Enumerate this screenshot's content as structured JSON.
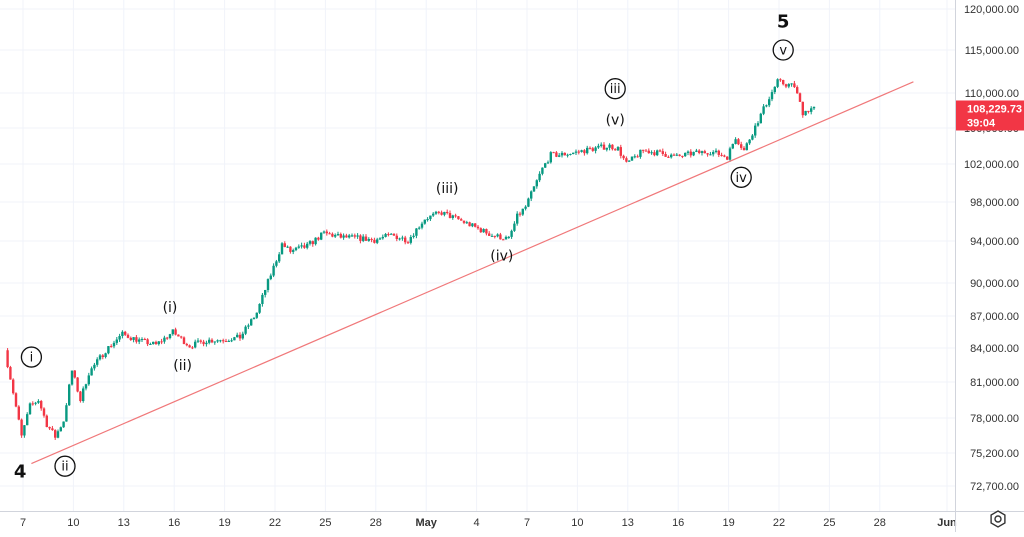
{
  "chart_data": {
    "type": "candlestick",
    "y_ticks": [
      72700,
      75200,
      78000,
      81000,
      84000,
      87000,
      90000,
      94000,
      98000,
      102000,
      106000,
      110000,
      115000,
      120000
    ],
    "y_tick_labels": [
      "72,700.00",
      "75,200.00",
      "78,000.00",
      "81,000.00",
      "84,000.00",
      "87,000.00",
      "90,000.00",
      "94,000.00",
      "98,000.00",
      "102,000.00",
      "106,000.00",
      "110,000.00",
      "115,000.00",
      "120,000.00"
    ],
    "x_ticks": [
      {
        "date": "2025-04-07",
        "label": "7"
      },
      {
        "date": "2025-04-10",
        "label": "10"
      },
      {
        "date": "2025-04-13",
        "label": "13"
      },
      {
        "date": "2025-04-16",
        "label": "16"
      },
      {
        "date": "2025-04-19",
        "label": "19"
      },
      {
        "date": "2025-04-22",
        "label": "22"
      },
      {
        "date": "2025-04-25",
        "label": "25"
      },
      {
        "date": "2025-04-28",
        "label": "28"
      },
      {
        "date": "2025-05-01",
        "label": "May"
      },
      {
        "date": "2025-05-04",
        "label": "4"
      },
      {
        "date": "2025-05-07",
        "label": "7"
      },
      {
        "date": "2025-05-10",
        "label": "10"
      },
      {
        "date": "2025-05-13",
        "label": "13"
      },
      {
        "date": "2025-05-16",
        "label": "16"
      },
      {
        "date": "2025-05-19",
        "label": "19"
      },
      {
        "date": "2025-05-22",
        "label": "22"
      },
      {
        "date": "2025-05-25",
        "label": "25"
      },
      {
        "date": "2025-05-28",
        "label": "28"
      },
      {
        "date": "2025-06-01",
        "label": "Jun"
      }
    ],
    "price_key": [
      [
        "2025-04-06",
        83800
      ],
      [
        "2025-04-07",
        76500
      ],
      [
        "2025-04-07 12:00",
        79000
      ],
      [
        "2025-04-08",
        79500
      ],
      [
        "2025-04-08 12:00",
        77500
      ],
      [
        "2025-04-09",
        76500
      ],
      [
        "2025-04-09 12:00",
        77800
      ],
      [
        "2025-04-10",
        82000
      ],
      [
        "2025-04-10 12:00",
        79500
      ],
      [
        "2025-04-11",
        81800
      ],
      [
        "2025-04-12",
        83800
      ],
      [
        "2025-04-13",
        85300
      ],
      [
        "2025-04-14",
        84700
      ],
      [
        "2025-04-15",
        84300
      ],
      [
        "2025-04-16",
        85500
      ],
      [
        "2025-04-17",
        84200
      ],
      [
        "2025-04-18",
        84700
      ],
      [
        "2025-04-19",
        84800
      ],
      [
        "2025-04-20",
        85000
      ],
      [
        "2025-04-21",
        87300
      ],
      [
        "2025-04-22",
        91500
      ],
      [
        "2025-04-22 12:00",
        93700
      ],
      [
        "2025-04-23",
        93000
      ],
      [
        "2025-04-24",
        93500
      ],
      [
        "2025-04-25",
        94800
      ],
      [
        "2025-04-26",
        94400
      ],
      [
        "2025-04-27",
        94300
      ],
      [
        "2025-04-28",
        94100
      ],
      [
        "2025-04-29",
        94600
      ],
      [
        "2025-04-30",
        94100
      ],
      [
        "2025-05-01",
        96300
      ],
      [
        "2025-05-02",
        96900
      ],
      [
        "2025-05-03",
        96200
      ],
      [
        "2025-05-04",
        95400
      ],
      [
        "2025-05-05",
        94600
      ],
      [
        "2025-05-06",
        94200
      ],
      [
        "2025-05-06 12:00",
        96500
      ],
      [
        "2025-05-07",
        97500
      ],
      [
        "2025-05-08",
        101500
      ],
      [
        "2025-05-08 12:00",
        103000
      ],
      [
        "2025-05-09",
        103000
      ],
      [
        "2025-05-10",
        103300
      ],
      [
        "2025-05-11",
        103700
      ],
      [
        "2025-05-12",
        104000
      ],
      [
        "2025-05-12 12:00",
        103700
      ],
      [
        "2025-05-13",
        102000
      ],
      [
        "2025-05-14",
        103500
      ],
      [
        "2025-05-15",
        103200
      ],
      [
        "2025-05-16",
        102800
      ],
      [
        "2025-05-17",
        103200
      ],
      [
        "2025-05-18",
        103400
      ],
      [
        "2025-05-19",
        102800
      ],
      [
        "2025-05-19 12:00",
        105000
      ],
      [
        "2025-05-20",
        103500
      ],
      [
        "2025-05-20 12:00",
        105500
      ],
      [
        "2025-05-21",
        107500
      ],
      [
        "2025-05-21 12:00",
        109500
      ],
      [
        "2025-05-22",
        111300
      ],
      [
        "2025-05-22 12:00",
        111000
      ],
      [
        "2025-05-23",
        110800
      ],
      [
        "2025-05-23 12:00",
        107800
      ],
      [
        "2025-05-24",
        108229.73
      ]
    ],
    "trendline": {
      "from": [
        "2025-04-07 12:00",
        74400
      ],
      "to": [
        "2025-05-30",
        111300
      ],
      "color": "#f0787a"
    },
    "colors": {
      "up": "#089981",
      "down": "#f23645",
      "grid": "#f0f3fa",
      "line": "#f0787a"
    },
    "last_price": {
      "value": "108,229.73",
      "countdown": "39:04",
      "color": "#f23645"
    },
    "wave_labels": [
      {
        "text": "4",
        "style": "bold",
        "date": "2025-04-06 20:00",
        "price": 73800
      },
      {
        "text": "i",
        "style": "circled",
        "date": "2025-04-07 12:00",
        "price": 83200
      },
      {
        "text": "ii",
        "style": "circled",
        "date": "2025-04-09 12:00",
        "price": 74200
      },
      {
        "text": "(i)",
        "style": "paren",
        "date": "2025-04-15 18:00",
        "price": 87800
      },
      {
        "text": "(ii)",
        "style": "paren",
        "date": "2025-04-16 12:00",
        "price": 82500
      },
      {
        "text": "(iii)",
        "style": "paren",
        "date": "2025-05-02 06:00",
        "price": 99500
      },
      {
        "text": "(iv)",
        "style": "paren",
        "date": "2025-05-05 12:00",
        "price": 92600
      },
      {
        "text": "iii",
        "style": "circled",
        "date": "2025-05-12 06:00",
        "price": 110500
      },
      {
        "text": "(v)",
        "style": "paren",
        "date": "2025-05-12 06:00",
        "price": 107000
      },
      {
        "text": "iv",
        "style": "circled",
        "date": "2025-05-19 18:00",
        "price": 100600
      },
      {
        "text": "v",
        "style": "circled",
        "date": "2025-05-22 06:00",
        "price": 115000
      },
      {
        "text": "5",
        "style": "bold",
        "date": "2025-05-22 06:00",
        "price": 118500
      }
    ],
    "settings_icon": "gear-icon"
  }
}
